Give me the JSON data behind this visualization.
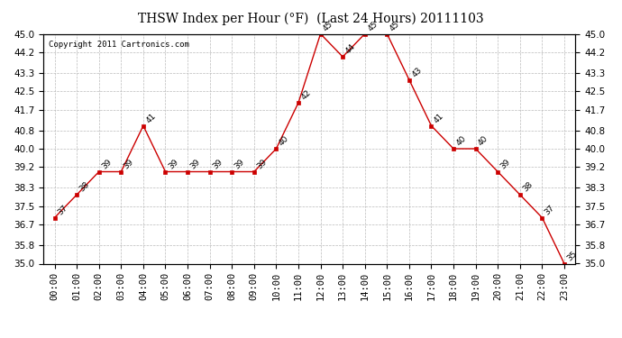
{
  "title": "THSW Index per Hour (°F)  (Last 24 Hours) 20111103",
  "copyright": "Copyright 2011 Cartronics.com",
  "hours": [
    "00:00",
    "01:00",
    "02:00",
    "03:00",
    "04:00",
    "05:00",
    "06:00",
    "07:00",
    "08:00",
    "09:00",
    "10:00",
    "11:00",
    "12:00",
    "13:00",
    "14:00",
    "15:00",
    "16:00",
    "17:00",
    "18:00",
    "19:00",
    "20:00",
    "21:00",
    "22:00",
    "23:00"
  ],
  "values": [
    37,
    38,
    39,
    39,
    41,
    39,
    39,
    39,
    39,
    39,
    40,
    42,
    45,
    44,
    45,
    45,
    43,
    41,
    40,
    40,
    39,
    38,
    37,
    35
  ],
  "ylim": [
    35.0,
    45.0
  ],
  "yticks": [
    35.0,
    35.8,
    36.7,
    37.5,
    38.3,
    39.2,
    40.0,
    40.8,
    41.7,
    42.5,
    43.3,
    44.2,
    45.0
  ],
  "line_color": "#cc0000",
  "marker_color": "#cc0000",
  "grid_color": "#bbbbbb",
  "bg_color": "#ffffff",
  "title_fontsize": 10,
  "copyright_fontsize": 6.5,
  "label_fontsize": 6.5,
  "tick_fontsize": 7.5
}
